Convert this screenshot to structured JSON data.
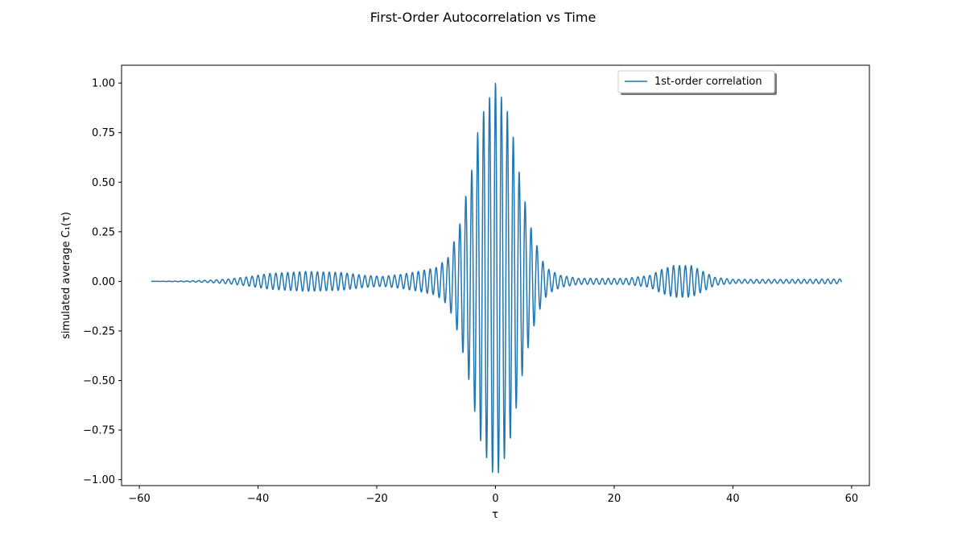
{
  "chart_data": {
    "type": "line",
    "title": "First-Order Autocorrelation vs Time",
    "xlabel": "τ",
    "ylabel": "simulated average C₁(τ)",
    "xlim": [
      -63,
      63
    ],
    "ylim": [
      -1.03,
      1.09
    ],
    "x_ticks": [
      -60,
      -40,
      -20,
      0,
      20,
      40,
      60
    ],
    "x_tick_labels": [
      "−60",
      "−40",
      "−20",
      "0",
      "20",
      "40",
      "60"
    ],
    "y_ticks": [
      -1.0,
      -0.75,
      -0.5,
      -0.25,
      0.0,
      0.25,
      0.5,
      0.75,
      1.0
    ],
    "y_tick_labels": [
      "−1.00",
      "−0.75",
      "−0.50",
      "−0.25",
      "0.00",
      "0.25",
      "0.50",
      "0.75",
      "1.00"
    ],
    "grid": false,
    "legend_position": "top-right",
    "series": [
      {
        "name": "1st-order correlation",
        "color": "#1f77b4",
        "x_range": [
          -58,
          58.3
        ],
        "oscillation_period": 1.0,
        "envelope": [
          [
            -58,
            0.0
          ],
          [
            -52,
            0.002
          ],
          [
            -48,
            0.006
          ],
          [
            -45,
            0.012
          ],
          [
            -42,
            0.022
          ],
          [
            -38,
            0.04
          ],
          [
            -32,
            0.05
          ],
          [
            -26,
            0.045
          ],
          [
            -22,
            0.03
          ],
          [
            -19,
            0.025
          ],
          [
            -16,
            0.035
          ],
          [
            -13,
            0.05
          ],
          [
            -10,
            0.07
          ],
          [
            -8,
            0.12
          ],
          [
            -7,
            0.2
          ],
          [
            -6,
            0.29
          ],
          [
            -5,
            0.43
          ],
          [
            -4,
            0.56
          ],
          [
            -3,
            0.75
          ],
          [
            -2,
            0.86
          ],
          [
            -1,
            0.93
          ],
          [
            0,
            1.0
          ],
          [
            1,
            0.93
          ],
          [
            2,
            0.86
          ],
          [
            3,
            0.73
          ],
          [
            4,
            0.55
          ],
          [
            5,
            0.4
          ],
          [
            6,
            0.27
          ],
          [
            7,
            0.18
          ],
          [
            8,
            0.1
          ],
          [
            9,
            0.06
          ],
          [
            11,
            0.03
          ],
          [
            14,
            0.015
          ],
          [
            22,
            0.015
          ],
          [
            26,
            0.03
          ],
          [
            28,
            0.06
          ],
          [
            30,
            0.08
          ],
          [
            33,
            0.08
          ],
          [
            35,
            0.05
          ],
          [
            37,
            0.02
          ],
          [
            40,
            0.01
          ],
          [
            50,
            0.01
          ],
          [
            58.3,
            0.012
          ]
        ]
      }
    ]
  }
}
